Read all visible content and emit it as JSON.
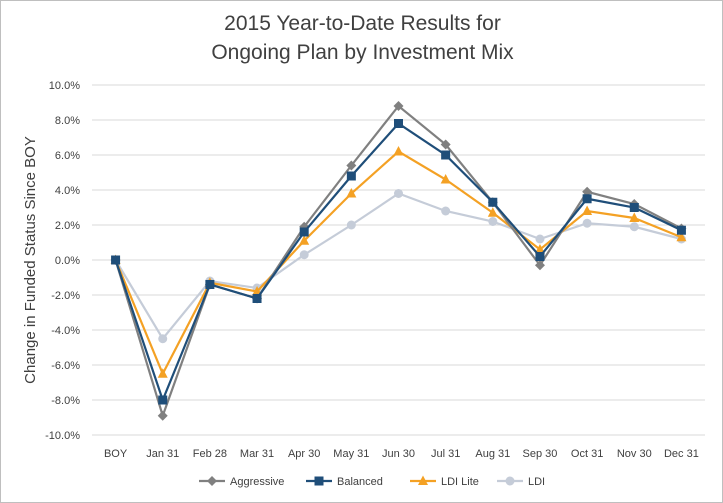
{
  "chart_data": {
    "type": "line",
    "title_line1": "2015 Year-to-Date Results for",
    "title_line2": "Ongoing Plan by Investment Mix",
    "ylabel": "Change in Funded Status Since BOY",
    "xlabel": "",
    "categories": [
      "BOY",
      "Jan 31",
      "Feb 28",
      "Mar 31",
      "Apr 30",
      "May 31",
      "Jun 30",
      "Jul 31",
      "Aug 31",
      "Sep 30",
      "Oct 31",
      "Nov 30",
      "Dec 31"
    ],
    "ylim": [
      -10.0,
      10.0
    ],
    "yticks": [
      -10.0,
      -8.0,
      -6.0,
      -4.0,
      -2.0,
      0.0,
      2.0,
      4.0,
      6.0,
      8.0,
      10.0
    ],
    "ytick_labels": [
      "-10.0%",
      "-8.0%",
      "-6.0%",
      "-4.0%",
      "-2.0%",
      "0.0%",
      "2.0%",
      "4.0%",
      "6.0%",
      "8.0%",
      "10.0%"
    ],
    "grid": "horizontal",
    "legend_position": "bottom",
    "series": [
      {
        "name": "Aggressive",
        "color": "#808080",
        "marker": "diamond",
        "values": [
          0.0,
          -8.9,
          -1.4,
          -2.2,
          1.9,
          5.4,
          8.8,
          6.6,
          3.3,
          -0.3,
          3.9,
          3.2,
          1.8
        ]
      },
      {
        "name": "Balanced",
        "color": "#1f4e79",
        "marker": "square",
        "values": [
          0.0,
          -8.0,
          -1.4,
          -2.2,
          1.6,
          4.8,
          7.8,
          6.0,
          3.3,
          0.2,
          3.5,
          3.0,
          1.7
        ]
      },
      {
        "name": "LDI Lite",
        "color": "#f4a124",
        "marker": "triangle",
        "values": [
          0.0,
          -6.5,
          -1.3,
          -1.8,
          1.1,
          3.8,
          6.2,
          4.6,
          2.7,
          0.6,
          2.8,
          2.4,
          1.3
        ]
      },
      {
        "name": "LDI",
        "color": "#c5ccd8",
        "marker": "circle",
        "values": [
          0.0,
          -4.5,
          -1.2,
          -1.6,
          0.3,
          2.0,
          3.8,
          2.8,
          2.2,
          1.2,
          2.1,
          1.9,
          1.2
        ]
      }
    ]
  }
}
